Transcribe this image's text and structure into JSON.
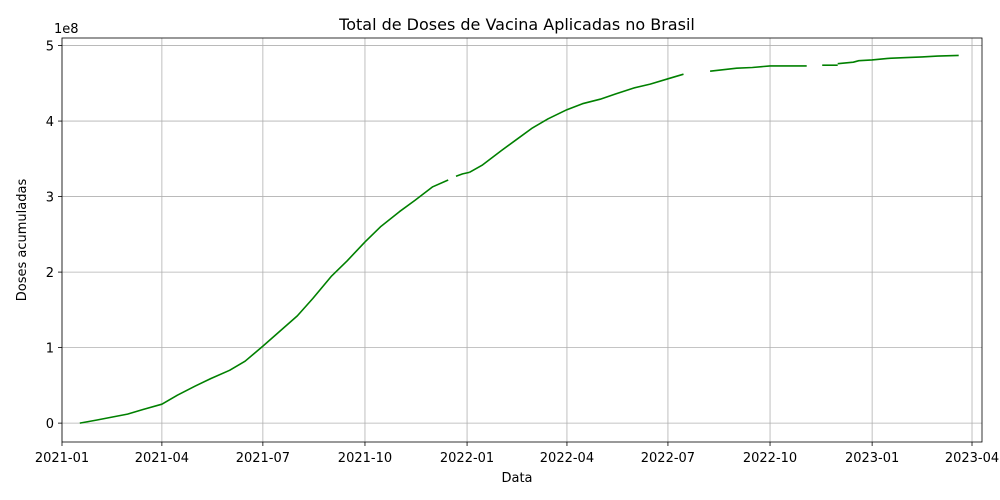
{
  "chart_data": {
    "type": "line",
    "title": "Total de Doses de Vacina Aplicadas no Brasil",
    "xlabel": "Data",
    "ylabel": "Doses acumuladas",
    "y_offset_label": "1e8",
    "grid": true,
    "xlim": [
      "2021-01-01",
      "2023-04-10"
    ],
    "ylim": [
      -0.25,
      5.1
    ],
    "y_multiplier": 100000000,
    "x_ticks": [
      "2021-01-01",
      "2021-04-01",
      "2021-07-01",
      "2021-10-01",
      "2022-01-01",
      "2022-04-01",
      "2022-07-01",
      "2022-10-01",
      "2023-01-01",
      "2023-04-01"
    ],
    "x_tick_labels": [
      "2021-01",
      "2021-04",
      "2021-07",
      "2021-10",
      "2022-01",
      "2022-04",
      "2022-07",
      "2022-10",
      "2023-01",
      "2023-04"
    ],
    "y_ticks": [
      0,
      1,
      2,
      3,
      4,
      5
    ],
    "y_tick_labels": [
      "0",
      "1",
      "2",
      "3",
      "4",
      "5"
    ],
    "line_color": "#008000",
    "series": [
      {
        "points": [
          [
            "2021-01-17",
            0.0
          ],
          [
            "2021-02-01",
            0.04
          ],
          [
            "2021-02-15",
            0.08
          ],
          [
            "2021-03-01",
            0.12
          ],
          [
            "2021-03-15",
            0.18
          ],
          [
            "2021-04-01",
            0.25
          ],
          [
            "2021-04-15",
            0.37
          ],
          [
            "2021-05-01",
            0.49
          ],
          [
            "2021-05-15",
            0.59
          ],
          [
            "2021-06-01",
            0.7
          ],
          [
            "2021-06-15",
            0.82
          ],
          [
            "2021-07-01",
            1.02
          ],
          [
            "2021-07-15",
            1.2
          ],
          [
            "2021-08-01",
            1.42
          ],
          [
            "2021-08-15",
            1.65
          ],
          [
            "2021-09-01",
            1.95
          ],
          [
            "2021-09-15",
            2.15
          ],
          [
            "2021-10-01",
            2.4
          ],
          [
            "2021-10-15",
            2.6
          ],
          [
            "2021-11-01",
            2.8
          ],
          [
            "2021-11-15",
            2.95
          ],
          [
            "2021-12-01",
            3.13
          ],
          [
            "2021-12-15",
            3.22
          ]
        ]
      },
      {
        "points": [
          [
            "2021-12-22",
            3.27
          ],
          [
            "2021-12-28",
            3.3
          ],
          [
            "2022-01-03",
            3.32
          ]
        ]
      },
      {
        "points": [
          [
            "2022-01-03",
            3.32
          ],
          [
            "2022-01-15",
            3.42
          ],
          [
            "2022-02-01",
            3.61
          ],
          [
            "2022-02-15",
            3.76
          ],
          [
            "2022-03-01",
            3.91
          ],
          [
            "2022-03-15",
            4.03
          ],
          [
            "2022-04-01",
            4.15
          ],
          [
            "2022-04-15",
            4.23
          ],
          [
            "2022-05-01",
            4.29
          ],
          [
            "2022-05-15",
            4.36
          ],
          [
            "2022-06-01",
            4.44
          ],
          [
            "2022-06-15",
            4.49
          ],
          [
            "2022-07-01",
            4.56
          ],
          [
            "2022-07-15",
            4.62
          ]
        ]
      },
      {
        "points": [
          [
            "2022-08-08",
            4.66
          ],
          [
            "2022-08-20",
            4.68
          ],
          [
            "2022-09-01",
            4.7
          ],
          [
            "2022-09-15",
            4.71
          ],
          [
            "2022-10-01",
            4.73
          ]
        ]
      },
      {
        "points": [
          [
            "2022-10-01",
            4.73
          ],
          [
            "2022-11-03",
            4.73
          ]
        ]
      },
      {
        "points": [
          [
            "2022-11-17",
            4.74
          ],
          [
            "2022-12-01",
            4.74
          ]
        ]
      },
      {
        "points": [
          [
            "2022-12-01",
            4.76
          ],
          [
            "2022-12-15",
            4.78
          ],
          [
            "2022-12-20",
            4.8
          ],
          [
            "2023-01-01",
            4.81
          ],
          [
            "2023-01-15",
            4.83
          ],
          [
            "2023-02-01",
            4.84
          ],
          [
            "2023-02-15",
            4.85
          ],
          [
            "2023-03-01",
            4.86
          ],
          [
            "2023-03-20",
            4.87
          ]
        ]
      }
    ]
  }
}
